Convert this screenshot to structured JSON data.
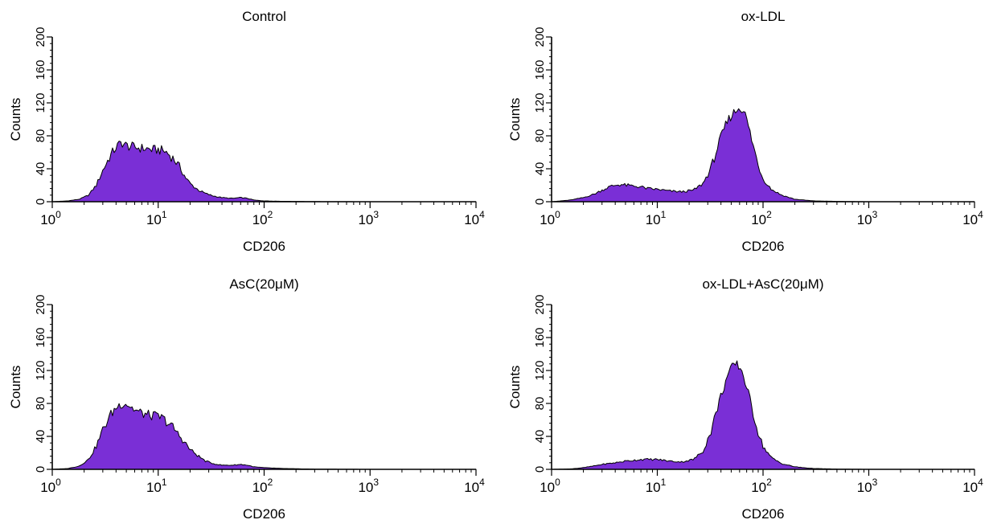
{
  "colors": {
    "fill": "#7A2FD6",
    "outline": "#000000",
    "axis": "#000000",
    "background": "#ffffff"
  },
  "chart_data": [
    {
      "type": "area",
      "title": "Control",
      "xlabel": "CD206",
      "ylabel": "Counts",
      "xscale": "log",
      "xlim": [
        1,
        10000
      ],
      "ylim": [
        0,
        200
      ],
      "xticks": [
        {
          "base": "10",
          "exp": "0"
        },
        {
          "base": "10",
          "exp": "1"
        },
        {
          "base": "10",
          "exp": "2"
        },
        {
          "base": "10",
          "exp": "3"
        },
        {
          "base": "10",
          "exp": "4"
        }
      ],
      "yticks": [
        "0",
        "40",
        "80",
        "120",
        "160",
        "200"
      ],
      "grid": false,
      "x": [
        1,
        1.4,
        1.8,
        2.2,
        2.6,
        3.0,
        3.5,
        4.0,
        4.5,
        5,
        6,
        7,
        8,
        9,
        10,
        11,
        12,
        14,
        16,
        18,
        20,
        24,
        28,
        33,
        40,
        50,
        60,
        70,
        80,
        100,
        150,
        300,
        1000,
        10000
      ],
      "y": [
        0,
        1,
        3,
        8,
        20,
        38,
        55,
        66,
        72,
        68,
        66,
        65,
        64,
        63,
        63,
        62,
        60,
        52,
        42,
        30,
        22,
        14,
        10,
        7,
        5,
        4,
        5,
        4,
        2,
        1,
        0.5,
        0.2,
        0,
        0
      ]
    },
    {
      "type": "area",
      "title": "ox-LDL",
      "xlabel": "CD206",
      "ylabel": "Counts",
      "xscale": "log",
      "xlim": [
        1,
        10000
      ],
      "ylim": [
        0,
        200
      ],
      "xticks": [
        {
          "base": "10",
          "exp": "0"
        },
        {
          "base": "10",
          "exp": "1"
        },
        {
          "base": "10",
          "exp": "2"
        },
        {
          "base": "10",
          "exp": "3"
        },
        {
          "base": "10",
          "exp": "4"
        }
      ],
      "yticks": [
        "0",
        "40",
        "80",
        "120",
        "160",
        "200"
      ],
      "grid": false,
      "x": [
        1,
        1.5,
        2,
        2.5,
        3,
        3.5,
        4,
        4.5,
        5,
        6,
        7,
        8,
        10,
        13,
        17,
        22,
        27,
        32,
        38,
        45,
        50,
        55,
        60,
        65,
        70,
        80,
        90,
        100,
        120,
        150,
        200,
        300,
        500,
        1000,
        10000
      ],
      "y": [
        0,
        2,
        5,
        9,
        14,
        18,
        20,
        21,
        20,
        19,
        18,
        16,
        15,
        13,
        12,
        14,
        22,
        40,
        70,
        95,
        105,
        110,
        115,
        112,
        100,
        70,
        45,
        28,
        15,
        8,
        3,
        1,
        0.4,
        0,
        0
      ]
    },
    {
      "type": "area",
      "title": "AsC(20μM)",
      "xlabel": "CD206",
      "ylabel": "Counts",
      "xscale": "log",
      "xlim": [
        1,
        10000
      ],
      "ylim": [
        0,
        200
      ],
      "xticks": [
        {
          "base": "10",
          "exp": "0"
        },
        {
          "base": "10",
          "exp": "1"
        },
        {
          "base": "10",
          "exp": "2"
        },
        {
          "base": "10",
          "exp": "3"
        },
        {
          "base": "10",
          "exp": "4"
        }
      ],
      "yticks": [
        "0",
        "40",
        "80",
        "120",
        "160",
        "200"
      ],
      "grid": false,
      "x": [
        1,
        1.4,
        1.8,
        2.2,
        2.6,
        3.0,
        3.5,
        4.0,
        4.5,
        5,
        5.5,
        6,
        7,
        8,
        9,
        10,
        11,
        12,
        14,
        16,
        18,
        20,
        24,
        28,
        33,
        40,
        50,
        60,
        70,
        80,
        100,
        150,
        300,
        1000,
        10000
      ],
      "y": [
        0,
        1,
        4,
        12,
        28,
        48,
        65,
        75,
        80,
        80,
        76,
        72,
        68,
        66,
        65,
        64,
        62,
        58,
        50,
        40,
        32,
        24,
        16,
        10,
        7,
        5,
        5,
        6,
        5,
        3,
        2,
        1,
        0.3,
        0,
        0
      ]
    },
    {
      "type": "area",
      "title": "ox-LDL+AsC(20μM)",
      "xlabel": "CD206",
      "ylabel": "Counts",
      "xscale": "log",
      "xlim": [
        1,
        10000
      ],
      "ylim": [
        0,
        200
      ],
      "xticks": [
        {
          "base": "10",
          "exp": "0"
        },
        {
          "base": "10",
          "exp": "1"
        },
        {
          "base": "10",
          "exp": "2"
        },
        {
          "base": "10",
          "exp": "3"
        },
        {
          "base": "10",
          "exp": "4"
        }
      ],
      "yticks": [
        "0",
        "40",
        "80",
        "120",
        "160",
        "200"
      ],
      "grid": false,
      "x": [
        1,
        1.5,
        2,
        2.5,
        3,
        4,
        5,
        6,
        7,
        8,
        10,
        13,
        17,
        22,
        27,
        32,
        38,
        45,
        50,
        55,
        60,
        65,
        70,
        80,
        90,
        100,
        120,
        150,
        200,
        300,
        500,
        1000,
        10000
      ],
      "y": [
        0,
        0.5,
        2,
        4,
        6,
        8,
        10,
        11,
        12,
        12,
        12,
        10,
        9,
        12,
        22,
        45,
        80,
        110,
        122,
        128,
        125,
        115,
        100,
        70,
        45,
        28,
        14,
        7,
        3,
        1,
        0.3,
        0,
        0
      ]
    }
  ]
}
